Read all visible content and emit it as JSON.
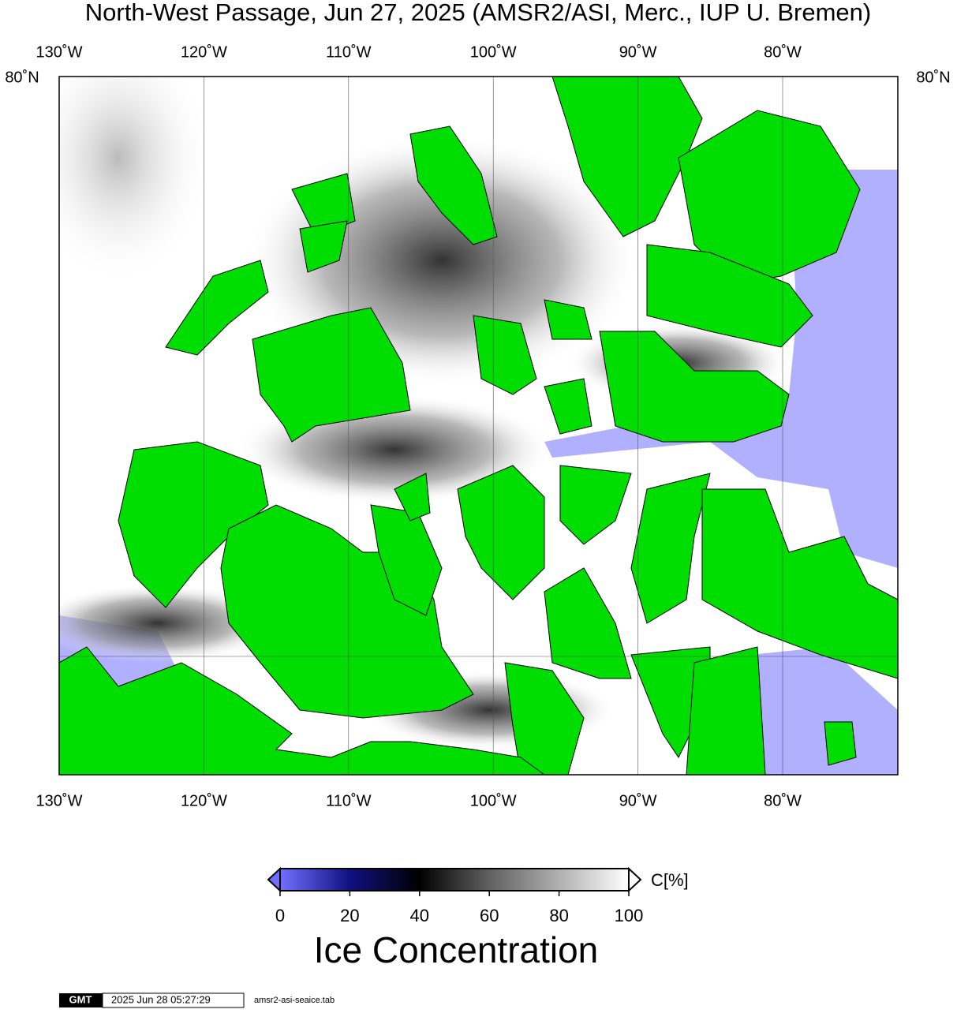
{
  "title": "North-West Passage, Jun 27, 2025 (AMSR2/ASI, Merc., IUP U. Bremen)",
  "map": {
    "lon_labels": [
      "130˚W",
      "120˚W",
      "110˚W",
      "100˚W",
      "90˚W",
      "80˚W"
    ],
    "lat_label": "80˚N"
  },
  "colorbar": {
    "unit": "C[%]",
    "range": [
      0,
      100
    ],
    "ticks": [
      0,
      20,
      40,
      60,
      80,
      100
    ],
    "label": "Ice Concentration"
  },
  "footer": {
    "logo": "GMT",
    "timestamp": "2025 Jun 28 05:27:29",
    "file": "amsr2-asi-seaice.tab"
  }
}
